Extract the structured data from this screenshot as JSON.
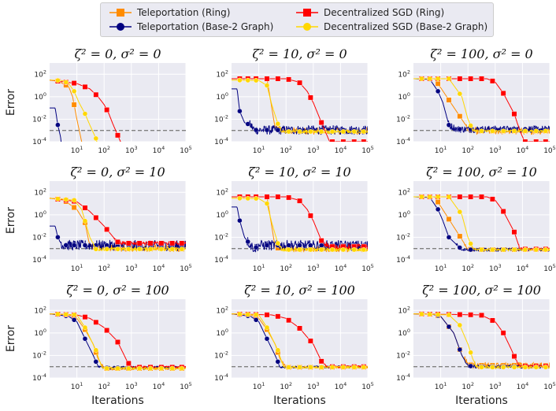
{
  "legend": {
    "items": [
      {
        "label": "Teleportation (Ring)",
        "color": "#ff8c00",
        "marker": "square"
      },
      {
        "label": "Teleportation (Base-2 Graph)",
        "color": "#000080",
        "marker": "circle"
      },
      {
        "label": "Decentralized SGD (Ring)",
        "color": "#ff0000",
        "marker": "square"
      },
      {
        "label": "Decentralized SGD (Base-2 Graph)",
        "color": "#ffd700",
        "marker": "circle"
      }
    ]
  },
  "chart_data": {
    "type": "line",
    "xscale": "log",
    "yscale": "log",
    "xlim": [
      1,
      100000
    ],
    "ylim": [
      0.0001,
      1000
    ],
    "xticks": [
      "10^1",
      "10^2",
      "10^3",
      "10^4",
      "10^5"
    ],
    "yticks": [
      "10^-4",
      "10^-2",
      "10^0",
      "10^2"
    ],
    "xlabel": "Iterations",
    "ylabel": "Error",
    "reference_line": {
      "y": 0.001,
      "style": "dashed",
      "color": "#808080"
    },
    "series_names": [
      "Teleportation (Ring)",
      "Teleportation (Base-2 Graph)",
      "Decentralized SGD (Ring)",
      "Decentralized SGD (Base-2 Graph)"
    ],
    "panels": [
      {
        "title": "ζ² = 0, σ² = 0",
        "series": [
          {
            "name": "Teleportation (Ring)",
            "x": [
              1,
              2,
              3,
              5,
              7,
              10,
              15,
              20
            ],
            "y": [
              30,
              27,
              15,
              8,
              1,
              0.01,
              0.0001,
              1e-05
            ],
            "noise": 0
          },
          {
            "name": "Teleportation (Base-2 Graph)",
            "x": [
              1,
              1.6,
              2,
              2.5,
              3
            ],
            "y": [
              0.1,
              0.1,
              0.003,
              0.0003,
              1e-05
            ],
            "noise": 0
          },
          {
            "name": "Decentralized SGD (Ring)",
            "x": [
              1,
              10,
              30,
              60,
              100,
              150,
              200,
              300,
              500
            ],
            "y": [
              30,
              15,
              5,
              1,
              0.2,
              0.03,
              0.005,
              0.0005,
              3e-05
            ],
            "noise": 0
          },
          {
            "name": "Decentralized SGD (Base-2 Graph)",
            "x": [
              1,
              3,
              5,
              8,
              12,
              20,
              30,
              50,
              70
            ],
            "y": [
              30,
              27,
              15,
              3,
              0.3,
              0.03,
              0.003,
              0.0002,
              1e-05
            ],
            "noise": 0
          }
        ]
      },
      {
        "title": "ζ² = 10, σ² = 0",
        "series": [
          {
            "name": "Teleportation (Ring)",
            "x": [
              1,
              20,
              40,
              100,
              100000
            ],
            "y": [
              40,
              40,
              0.0015,
              0.0009,
              0.0009
            ],
            "noise": 0.3
          },
          {
            "name": "Teleportation (Base-2 Graph)",
            "x": [
              1,
              1.6,
              2,
              3,
              5,
              7,
              100000
            ],
            "y": [
              5,
              5,
              0.05,
              0.005,
              0.003,
              0.0011,
              0.0011
            ],
            "noise": 0.4
          },
          {
            "name": "Decentralized SGD (Ring)",
            "x": [
              1,
              100,
              300,
              600,
              1000,
              2000,
              4000
            ],
            "y": [
              40,
              40,
              20,
              3,
              0.3,
              0.005,
              0.0001
            ],
            "noise": 0
          },
          {
            "name": "Decentralized SGD (Base-2 Graph)",
            "x": [
              1,
              10,
              20,
              30,
              50,
              70,
              100,
              200,
              100000
            ],
            "y": [
              30,
              28,
              10,
              0.2,
              0.004,
              0.0008,
              0.0008,
              0.0008,
              0.0008
            ],
            "noise": 0.15
          }
        ]
      },
      {
        "title": "ζ² = 100, σ² = 0",
        "series": [
          {
            "name": "Teleportation (Ring)",
            "x": [
              1,
              6,
              100,
              200,
              100000
            ],
            "y": [
              40,
              40,
              0.0015,
              0.0009,
              0.0009
            ],
            "noise": 0.3
          },
          {
            "name": "Teleportation (Base-2 Graph)",
            "x": [
              1,
              4,
              8,
              12,
              20,
              40,
              100000
            ],
            "y": [
              40,
              35,
              3,
              0.3,
              0.003,
              0.0013,
              0.0013
            ],
            "noise": 0.3
          },
          {
            "name": "Decentralized SGD (Ring)",
            "x": [
              1,
              500,
              1000,
              2000,
              5000,
              8000,
              12000
            ],
            "y": [
              40,
              40,
              20,
              2,
              0.03,
              0.001,
              0.0001
            ],
            "noise": 0
          },
          {
            "name": "Decentralized SGD (Base-2 Graph)",
            "x": [
              1,
              20,
              60,
              100,
              150,
              200,
              100000
            ],
            "y": [
              40,
              40,
              1,
              0.01,
              0.001,
              0.0009,
              0.0009
            ],
            "noise": 0.1
          }
        ]
      },
      {
        "title": "ζ² = 0, σ² = 10",
        "series": [
          {
            "name": "Teleportation (Ring)",
            "x": [
              1,
              3,
              10,
              20,
              30,
              100,
              100000
            ],
            "y": [
              30,
              25,
              3,
              0.2,
              0.0015,
              0.0011,
              0.0011
            ],
            "noise": 0.3
          },
          {
            "name": "Teleportation (Base-2 Graph)",
            "x": [
              1,
              1.6,
              2,
              3,
              4,
              100000
            ],
            "y": [
              0.1,
              0.1,
              0.01,
              0.002,
              0.002,
              0.0018
            ],
            "noise": 0.45
          },
          {
            "name": "Decentralized SGD (Ring)",
            "x": [
              1,
              10,
              30,
              100,
              300,
              500,
              100000
            ],
            "y": [
              30,
              15,
              2,
              0.1,
              0.004,
              0.003,
              0.003
            ],
            "noise": 0.15
          },
          {
            "name": "Decentralized SGD (Base-2 Graph)",
            "x": [
              1,
              8,
              15,
              30,
              50,
              100000
            ],
            "y": [
              30,
              20,
              3,
              0.01,
              0.0009,
              0.0009
            ],
            "noise": 0.15
          }
        ]
      },
      {
        "title": "ζ² = 10, σ² = 10",
        "series": [
          {
            "name": "Teleportation (Ring)",
            "x": [
              1,
              20,
              40,
              100,
              100000
            ],
            "y": [
              40,
              40,
              0.0012,
              0.0009,
              0.0009
            ],
            "noise": 0.25
          },
          {
            "name": "Teleportation (Base-2 Graph)",
            "x": [
              1,
              1.6,
              2,
              3,
              5,
              7,
              10,
              100000
            ],
            "y": [
              5,
              5,
              0.3,
              0.01,
              0.002,
              0.001,
              0.002,
              0.0018
            ],
            "noise": 0.45
          },
          {
            "name": "Decentralized SGD (Ring)",
            "x": [
              1,
              100,
              300,
              600,
              1000,
              2000,
              4000,
              100000
            ],
            "y": [
              40,
              40,
              20,
              3,
              0.3,
              0.005,
              0.0015,
              0.0015
            ],
            "noise": 0.25
          },
          {
            "name": "Decentralized SGD (Base-2 Graph)",
            "x": [
              1,
              10,
              20,
              30,
              50,
              70,
              100000
            ],
            "y": [
              30,
              28,
              10,
              0.2,
              0.003,
              0.0008,
              0.0008
            ],
            "noise": 0.15
          }
        ]
      },
      {
        "title": "ζ² = 100, σ² = 10",
        "series": [
          {
            "name": "Teleportation (Ring)",
            "x": [
              1,
              6,
              100,
              200,
              100000
            ],
            "y": [
              40,
              40,
              0.0009,
              0.0008,
              0.0008
            ],
            "noise": 0.15
          },
          {
            "name": "Teleportation (Base-2 Graph)",
            "x": [
              1,
              4,
              8,
              12,
              20,
              60,
              100000
            ],
            "y": [
              40,
              35,
              3,
              0.3,
              0.01,
              0.0008,
              0.0008
            ],
            "noise": 0.15
          },
          {
            "name": "Decentralized SGD (Ring)",
            "x": [
              1,
              500,
              1000,
              2000,
              5000,
              8000,
              12000,
              100000
            ],
            "y": [
              40,
              40,
              20,
              2,
              0.03,
              0.001,
              0.0009,
              0.0009
            ],
            "noise": 0.1
          },
          {
            "name": "Decentralized SGD (Base-2 Graph)",
            "x": [
              1,
              20,
              60,
              100,
              150,
              200,
              100000
            ],
            "y": [
              40,
              40,
              1,
              0.01,
              0.001,
              0.0008,
              0.0008
            ],
            "noise": 0.1
          }
        ]
      },
      {
        "title": "ζ² = 0, σ² = 100",
        "series": [
          {
            "name": "Teleportation (Ring)",
            "x": [
              1,
              5,
              10,
              20,
              40,
              60,
              100,
              100000
            ],
            "y": [
              50,
              40,
              20,
              2,
              0.1,
              0.005,
              0.0007,
              0.0007
            ],
            "noise": 0.15
          },
          {
            "name": "Teleportation (Base-2 Graph)",
            "x": [
              1,
              5,
              10,
              20,
              40,
              60,
              80,
              100000
            ],
            "y": [
              50,
              30,
              10,
              0.3,
              0.01,
              0.001,
              0.0008,
              0.0009
            ],
            "noise": 0.15
          },
          {
            "name": "Decentralized SGD (Ring)",
            "x": [
              1,
              10,
              30,
              100,
              300,
              700,
              1000,
              100000
            ],
            "y": [
              50,
              40,
              20,
              3,
              0.2,
              0.003,
              0.0009,
              0.0009
            ],
            "noise": 0.1
          },
          {
            "name": "Decentralized SGD (Base-2 Graph)",
            "x": [
              1,
              10,
              20,
              50,
              80,
              120,
              100000
            ],
            "y": [
              50,
              40,
              3,
              0.03,
              0.001,
              0.0007,
              0.0007
            ],
            "noise": 0.1
          }
        ]
      },
      {
        "title": "ζ² = 10, σ² = 100",
        "series": [
          {
            "name": "Teleportation (Ring)",
            "x": [
              1,
              5,
              10,
              20,
              40,
              60,
              100,
              100000
            ],
            "y": [
              50,
              40,
              20,
              2,
              0.1,
              0.005,
              0.0009,
              0.0009
            ],
            "noise": 0.1
          },
          {
            "name": "Teleportation (Base-2 Graph)",
            "x": [
              1,
              5,
              10,
              20,
              40,
              60,
              80,
              100000
            ],
            "y": [
              50,
              30,
              10,
              0.3,
              0.01,
              0.001,
              0.0009,
              0.001
            ],
            "noise": 0.1
          },
          {
            "name": "Decentralized SGD (Ring)",
            "x": [
              1,
              30,
              100,
              300,
              1000,
              2000,
              3000,
              100000
            ],
            "y": [
              50,
              40,
              20,
              3,
              0.1,
              0.003,
              0.001,
              0.001
            ],
            "noise": 0.1
          },
          {
            "name": "Decentralized SGD (Base-2 Graph)",
            "x": [
              1,
              10,
              20,
              50,
              80,
              120,
              100000
            ],
            "y": [
              50,
              40,
              3,
              0.03,
              0.001,
              0.0009,
              0.0009
            ],
            "noise": 0.1
          }
        ]
      },
      {
        "title": "ζ² = 100, σ² = 100",
        "series": [
          {
            "name": "Teleportation (Ring)",
            "x": [
              1,
              5,
              10,
              30,
              60,
              100,
              200,
              100000
            ],
            "y": [
              50,
              45,
              30,
              1,
              0.01,
              0.0015,
              0.0013,
              0.0013
            ],
            "noise": 0.3
          },
          {
            "name": "Teleportation (Base-2 Graph)",
            "x": [
              1,
              5,
              10,
              30,
              60,
              100,
              200,
              100000
            ],
            "y": [
              50,
              45,
              30,
              1,
              0.01,
              0.0012,
              0.001,
              0.001
            ],
            "noise": 0.15
          },
          {
            "name": "Decentralized SGD (Ring)",
            "x": [
              1,
              300,
              1000,
              2000,
              4000,
              6000,
              8000,
              100000
            ],
            "y": [
              50,
              40,
              10,
              1,
              0.03,
              0.003,
              0.0011,
              0.0011
            ],
            "noise": 0.1
          },
          {
            "name": "Decentralized SGD (Base-2 Graph)",
            "x": [
              1,
              20,
              50,
              100,
              150,
              200,
              300,
              100000
            ],
            "y": [
              50,
              40,
              5,
              0.1,
              0.005,
              0.001,
              0.0009,
              0.0009
            ],
            "noise": 0.1
          }
        ]
      }
    ]
  }
}
